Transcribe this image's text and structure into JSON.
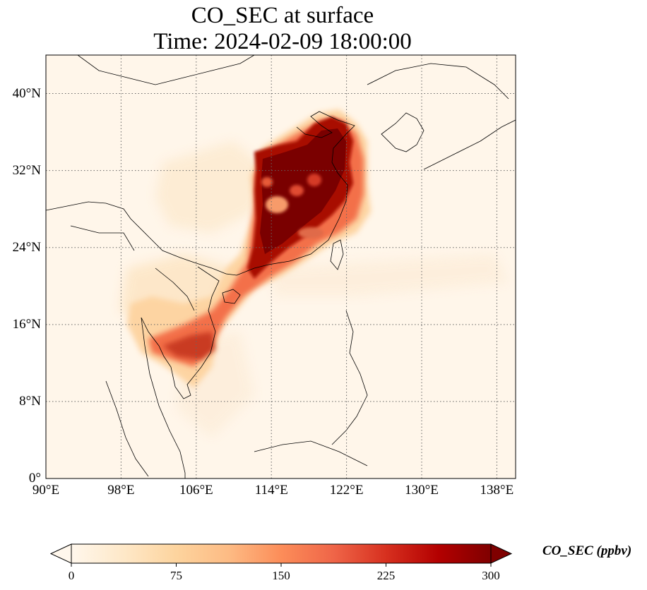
{
  "title": {
    "line1": "CO_SEC at surface",
    "line2": "Time: 2024-02-09 18:00:00"
  },
  "map": {
    "extent": {
      "lon": [
        90,
        140
      ],
      "lat": [
        0,
        44
      ]
    },
    "grid": {
      "style": "dotted",
      "lons": [
        90,
        98,
        106,
        114,
        122,
        130,
        138
      ],
      "lats": [
        0,
        8,
        16,
        24,
        32,
        40
      ]
    },
    "x_tick_labels": [
      "90°E",
      "98°E",
      "106°E",
      "114°E",
      "122°E",
      "130°E",
      "138°E"
    ],
    "y_tick_labels": [
      "0°",
      "8°N",
      "16°N",
      "24°N",
      "32°N",
      "40°N"
    ]
  },
  "colorbar": {
    "label": "CO_SEC (ppbv)",
    "range": [
      0,
      300
    ],
    "extend": "both",
    "colormap": "OrRd",
    "ticks": [
      "0",
      "75",
      "150",
      "225",
      "300"
    ],
    "colors": [
      "#fff7ec",
      "#fee8c8",
      "#fdd49e",
      "#fdbb84",
      "#fc8d59",
      "#ef6548",
      "#d7301f",
      "#b30000",
      "#7f0000"
    ]
  }
}
